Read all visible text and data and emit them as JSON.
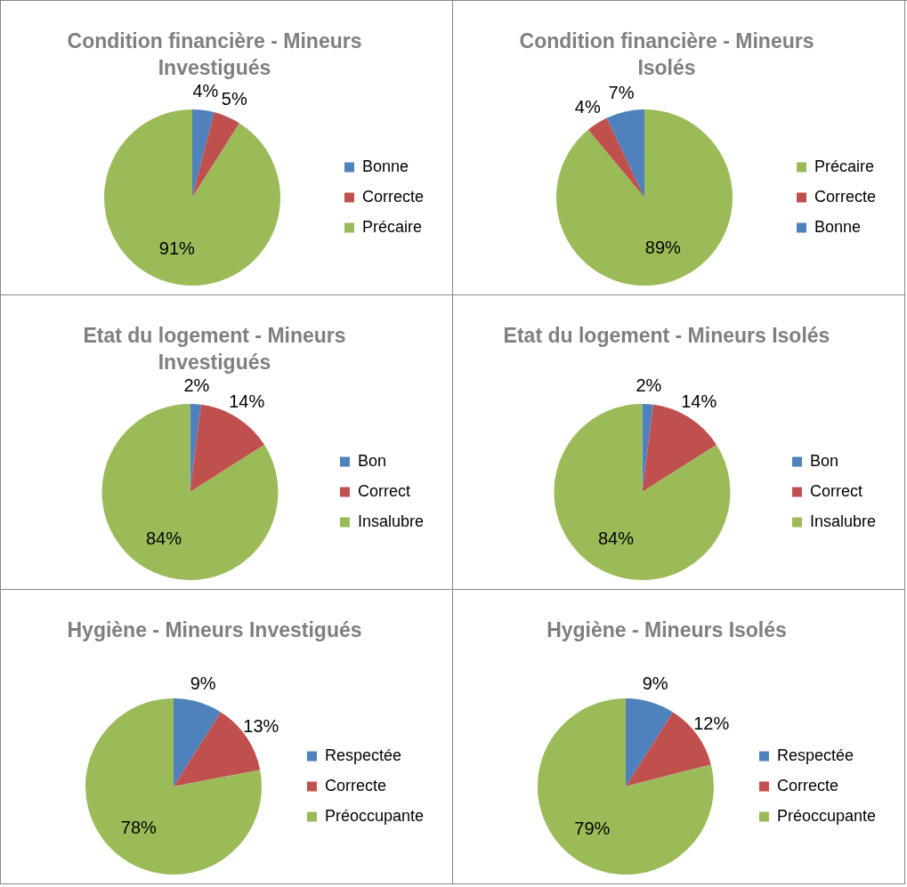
{
  "chart_data": [
    {
      "type": "pie",
      "title": "Condition financière - Mineurs Investigués",
      "categories": [
        "Bonne",
        "Correcte",
        "Précaire"
      ],
      "values": [
        4,
        5,
        91
      ],
      "value_labels": [
        "4%",
        "5%",
        "91%"
      ],
      "colors": [
        "#4f81bd",
        "#c0504d",
        "#9bbb59"
      ],
      "legend": "right"
    },
    {
      "type": "pie",
      "title": "Condition financière - Mineurs Isolés",
      "categories": [
        "Précaire",
        "Correcte",
        "Bonne"
      ],
      "values": [
        89,
        4,
        7
      ],
      "value_labels": [
        "89%",
        "4%",
        "7%"
      ],
      "colors": [
        "#9bbb59",
        "#c0504d",
        "#4f81bd"
      ],
      "legend": "right"
    },
    {
      "type": "pie",
      "title": "Etat du logement - Mineurs Investigués",
      "categories": [
        "Bon",
        "Correct",
        "Insalubre"
      ],
      "values": [
        2,
        14,
        84
      ],
      "value_labels": [
        "2%",
        "14%",
        "84%"
      ],
      "colors": [
        "#4f81bd",
        "#c0504d",
        "#9bbb59"
      ],
      "legend": "right"
    },
    {
      "type": "pie",
      "title": "Etat du logement - Mineurs Isolés",
      "categories": [
        "Bon",
        "Correct",
        "Insalubre"
      ],
      "values": [
        2,
        14,
        84
      ],
      "value_labels": [
        "2%",
        "14%",
        "84%"
      ],
      "colors": [
        "#4f81bd",
        "#c0504d",
        "#9bbb59"
      ],
      "legend": "right"
    },
    {
      "type": "pie",
      "title": "Hygiène - Mineurs Investigués",
      "categories": [
        "Respectée",
        "Correcte",
        "Préoccupante"
      ],
      "values": [
        9,
        13,
        78
      ],
      "value_labels": [
        "9%",
        "13%",
        "78%"
      ],
      "colors": [
        "#4f81bd",
        "#c0504d",
        "#9bbb59"
      ],
      "legend": "right"
    },
    {
      "type": "pie",
      "title": "Hygiène - Mineurs Isolés",
      "categories": [
        "Respectée",
        "Correcte",
        "Préoccupante"
      ],
      "values": [
        9,
        12,
        79
      ],
      "value_labels": [
        "9%",
        "12%",
        "79%"
      ],
      "colors": [
        "#4f81bd",
        "#c0504d",
        "#9bbb59"
      ],
      "legend": "right"
    }
  ]
}
